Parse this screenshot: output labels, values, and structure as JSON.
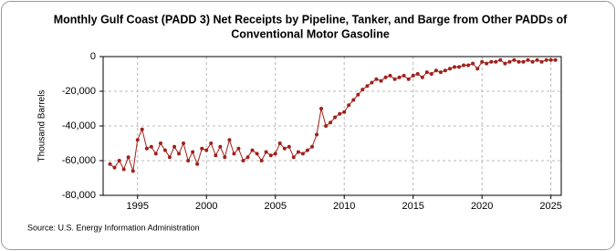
{
  "chart_data": {
    "type": "line",
    "title": [
      "Monthly Gulf Coast (PADD 3) Net Receipts by Pipeline, Tanker, and Barge from Other PADDs of",
      "Conventional Motor Gasoline"
    ],
    "ylabel": "Thousand Barrels",
    "source": "Source: U.S. Energy Information Administration",
    "color": "#a0201a",
    "grid": true,
    "xlim": [
      1992.5,
      2025.75
    ],
    "xticks": [
      1995,
      2000,
      2005,
      2010,
      2015,
      2020,
      2025
    ],
    "ylim": [
      -80000,
      0
    ],
    "yticks": [
      {
        "value": -80000,
        "label": "-80,000"
      },
      {
        "value": -60000,
        "label": "-60,000"
      },
      {
        "value": -40000,
        "label": "-40,000"
      },
      {
        "value": -20000,
        "label": "-20,000"
      },
      0
    ],
    "x": [
      1993,
      1993.33,
      1993.67,
      1994,
      1994.33,
      1994.67,
      1995,
      1995.33,
      1995.67,
      1996,
      1996.33,
      1996.67,
      1997,
      1997.33,
      1997.67,
      1998,
      1998.33,
      1998.67,
      1999,
      1999.33,
      1999.67,
      2000,
      2000.33,
      2000.67,
      2001,
      2001.33,
      2001.67,
      2002,
      2002.33,
      2002.67,
      2003,
      2003.33,
      2003.67,
      2004,
      2004.33,
      2004.67,
      2005,
      2005.33,
      2005.67,
      2006,
      2006.33,
      2006.67,
      2007,
      2007.33,
      2007.67,
      2008,
      2008.33,
      2008.67,
      2009,
      2009.33,
      2009.67,
      2010,
      2010.33,
      2010.67,
      2011,
      2011.33,
      2011.67,
      2012,
      2012.33,
      2012.67,
      2013,
      2013.33,
      2013.67,
      2014,
      2014.33,
      2014.67,
      2015,
      2015.33,
      2015.67,
      2016,
      2016.33,
      2016.67,
      2017,
      2017.33,
      2017.67,
      2018,
      2018.33,
      2018.67,
      2019,
      2019.33,
      2019.67,
      2020,
      2020.33,
      2020.67,
      2021,
      2021.33,
      2021.67,
      2022,
      2022.33,
      2022.67,
      2023,
      2023.33,
      2023.67,
      2024,
      2024.33,
      2024.67,
      2025,
      2025.33
    ],
    "values": [
      -62000,
      -64000,
      -60000,
      -65000,
      -58000,
      -66000,
      -48000,
      -42000,
      -53000,
      -52000,
      -56000,
      -50000,
      -54000,
      -58000,
      -52000,
      -56000,
      -50000,
      -60000,
      -55000,
      -62000,
      -53000,
      -54000,
      -50000,
      -57000,
      -52000,
      -58000,
      -48000,
      -56000,
      -53000,
      -60000,
      -58000,
      -54000,
      -56000,
      -60000,
      -55000,
      -57000,
      -56000,
      -50000,
      -53000,
      -52000,
      -58000,
      -55000,
      -56000,
      -54000,
      -52000,
      -45000,
      -30000,
      -40000,
      -38000,
      -35000,
      -33000,
      -32000,
      -28000,
      -25000,
      -22000,
      -19000,
      -17000,
      -15000,
      -13000,
      -14000,
      -12000,
      -11000,
      -13000,
      -12000,
      -11000,
      -13000,
      -11000,
      -10000,
      -12000,
      -9000,
      -10000,
      -8000,
      -9000,
      -8000,
      -7000,
      -6000,
      -6000,
      -5000,
      -5000,
      -4000,
      -7000,
      -3000,
      -4000,
      -3000,
      -3000,
      -2000,
      -4000,
      -3000,
      -2000,
      -3000,
      -3000,
      -2000,
      -3000,
      -2000,
      -3000,
      -2000,
      -2000,
      -2000
    ]
  }
}
